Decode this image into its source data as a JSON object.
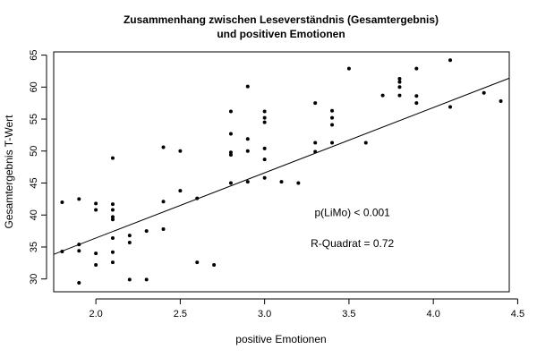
{
  "chart_data": {
    "type": "scatter",
    "title_line1": "Zusammenhang zwischen Leseverständnis (Gesamtergebnis)",
    "title_line2": "und positiven Emotionen",
    "xlabel": "positive Emotionen",
    "ylabel": "Gesamtergebnis T-Wert",
    "xlim": [
      1.75,
      4.45
    ],
    "ylim": [
      28,
      65.5
    ],
    "xticks": [
      2.0,
      2.5,
      3.0,
      3.5,
      4.0,
      4.5
    ],
    "xtick_labels": [
      "2.0",
      "2.5",
      "3.0",
      "3.5",
      "4.0",
      "4.5"
    ],
    "yticks": [
      30,
      35,
      40,
      45,
      50,
      55,
      60,
      65
    ],
    "ytick_labels": [
      "30",
      "35",
      "40",
      "45",
      "50",
      "55",
      "60",
      "65"
    ],
    "grid": false,
    "regression_line": {
      "slope": 10.2,
      "intercept": 16.0
    },
    "annotations": [
      {
        "text": "p(LiMo) < 0.001",
        "x": 3.52,
        "y": 39.8
      },
      {
        "text": "R-Quadrat = 0.72",
        "x": 3.52,
        "y": 35.0
      }
    ],
    "points": [
      {
        "x": 1.8,
        "y": 42.0
      },
      {
        "x": 1.8,
        "y": 34.3
      },
      {
        "x": 1.9,
        "y": 42.5
      },
      {
        "x": 1.9,
        "y": 35.4
      },
      {
        "x": 1.9,
        "y": 34.4
      },
      {
        "x": 1.9,
        "y": 29.4
      },
      {
        "x": 2.0,
        "y": 41.8
      },
      {
        "x": 2.0,
        "y": 40.8
      },
      {
        "x": 2.0,
        "y": 34.0
      },
      {
        "x": 2.0,
        "y": 32.2
      },
      {
        "x": 2.1,
        "y": 48.9
      },
      {
        "x": 2.1,
        "y": 41.7
      },
      {
        "x": 2.1,
        "y": 40.8
      },
      {
        "x": 2.1,
        "y": 39.7
      },
      {
        "x": 2.1,
        "y": 39.3
      },
      {
        "x": 2.1,
        "y": 36.4
      },
      {
        "x": 2.1,
        "y": 34.2
      },
      {
        "x": 2.1,
        "y": 32.6
      },
      {
        "x": 2.2,
        "y": 36.8
      },
      {
        "x": 2.2,
        "y": 35.7
      },
      {
        "x": 2.2,
        "y": 29.9
      },
      {
        "x": 2.3,
        "y": 37.5
      },
      {
        "x": 2.3,
        "y": 29.9
      },
      {
        "x": 2.4,
        "y": 50.6
      },
      {
        "x": 2.4,
        "y": 42.1
      },
      {
        "x": 2.4,
        "y": 37.8
      },
      {
        "x": 2.5,
        "y": 50.0
      },
      {
        "x": 2.5,
        "y": 43.8
      },
      {
        "x": 2.6,
        "y": 42.6
      },
      {
        "x": 2.6,
        "y": 32.6
      },
      {
        "x": 2.7,
        "y": 32.2
      },
      {
        "x": 2.8,
        "y": 56.2
      },
      {
        "x": 2.8,
        "y": 52.7
      },
      {
        "x": 2.8,
        "y": 49.8
      },
      {
        "x": 2.8,
        "y": 49.4
      },
      {
        "x": 2.8,
        "y": 45.0
      },
      {
        "x": 2.9,
        "y": 60.1
      },
      {
        "x": 2.9,
        "y": 51.9
      },
      {
        "x": 2.9,
        "y": 50.0
      },
      {
        "x": 2.9,
        "y": 45.2
      },
      {
        "x": 3.0,
        "y": 56.2
      },
      {
        "x": 3.0,
        "y": 55.2
      },
      {
        "x": 3.0,
        "y": 54.5
      },
      {
        "x": 3.0,
        "y": 50.4
      },
      {
        "x": 3.0,
        "y": 48.7
      },
      {
        "x": 3.0,
        "y": 45.8
      },
      {
        "x": 3.1,
        "y": 45.2
      },
      {
        "x": 3.2,
        "y": 45.0
      },
      {
        "x": 3.3,
        "y": 57.5
      },
      {
        "x": 3.3,
        "y": 51.3
      },
      {
        "x": 3.3,
        "y": 49.9
      },
      {
        "x": 3.4,
        "y": 56.3
      },
      {
        "x": 3.4,
        "y": 55.2
      },
      {
        "x": 3.4,
        "y": 54.1
      },
      {
        "x": 3.4,
        "y": 51.3
      },
      {
        "x": 3.5,
        "y": 62.9
      },
      {
        "x": 3.6,
        "y": 51.3
      },
      {
        "x": 3.7,
        "y": 58.7
      },
      {
        "x": 3.8,
        "y": 61.3
      },
      {
        "x": 3.8,
        "y": 60.8
      },
      {
        "x": 3.8,
        "y": 60.0
      },
      {
        "x": 3.8,
        "y": 58.7
      },
      {
        "x": 3.9,
        "y": 62.9
      },
      {
        "x": 3.9,
        "y": 58.6
      },
      {
        "x": 3.9,
        "y": 57.5
      },
      {
        "x": 4.1,
        "y": 64.2
      },
      {
        "x": 4.1,
        "y": 56.9
      },
      {
        "x": 4.3,
        "y": 59.1
      },
      {
        "x": 4.4,
        "y": 57.8
      }
    ]
  }
}
